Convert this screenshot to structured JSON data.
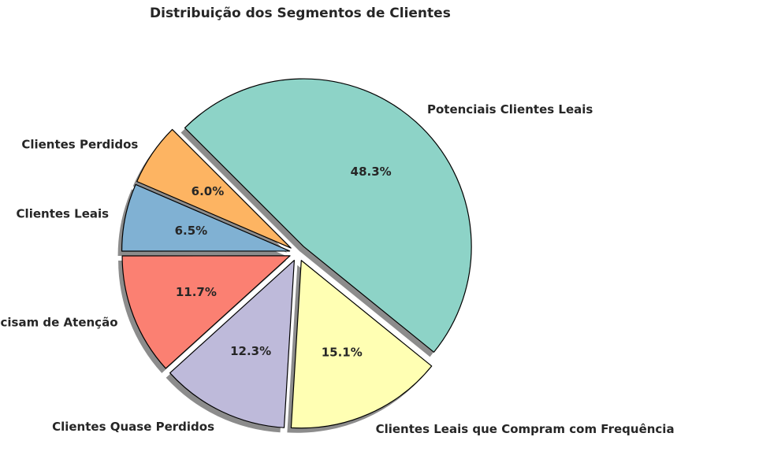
{
  "chart_data": {
    "type": "pie",
    "title": "Distribuição dos Segmentos de Clientes",
    "start_angle_deg": 135,
    "counterclockwise": false,
    "shadow": true,
    "legend": "none",
    "slices": [
      {
        "label": "Potenciais Clientes Leais",
        "value": 48.3,
        "pct_label": "48.3%",
        "color": "#8dd3c7"
      },
      {
        "label": "Clientes Leais que Compram com Frequência",
        "value": 15.1,
        "pct_label": "15.1%",
        "color": "#ffffb3"
      },
      {
        "label": "Clientes Quase Perdidos",
        "value": 12.3,
        "pct_label": "12.3%",
        "color": "#bebada"
      },
      {
        "label": "Clientes Precisam de Atenção",
        "value": 11.7,
        "pct_label": "11.7%",
        "color": "#fb8072"
      },
      {
        "label": "Clientes Leais",
        "value": 6.5,
        "pct_label": "6.5%",
        "color": "#80b1d3"
      },
      {
        "label": "Clientes Perdidos",
        "value": 6.0,
        "pct_label": "6.0%",
        "color": "#fdb462"
      }
    ]
  }
}
